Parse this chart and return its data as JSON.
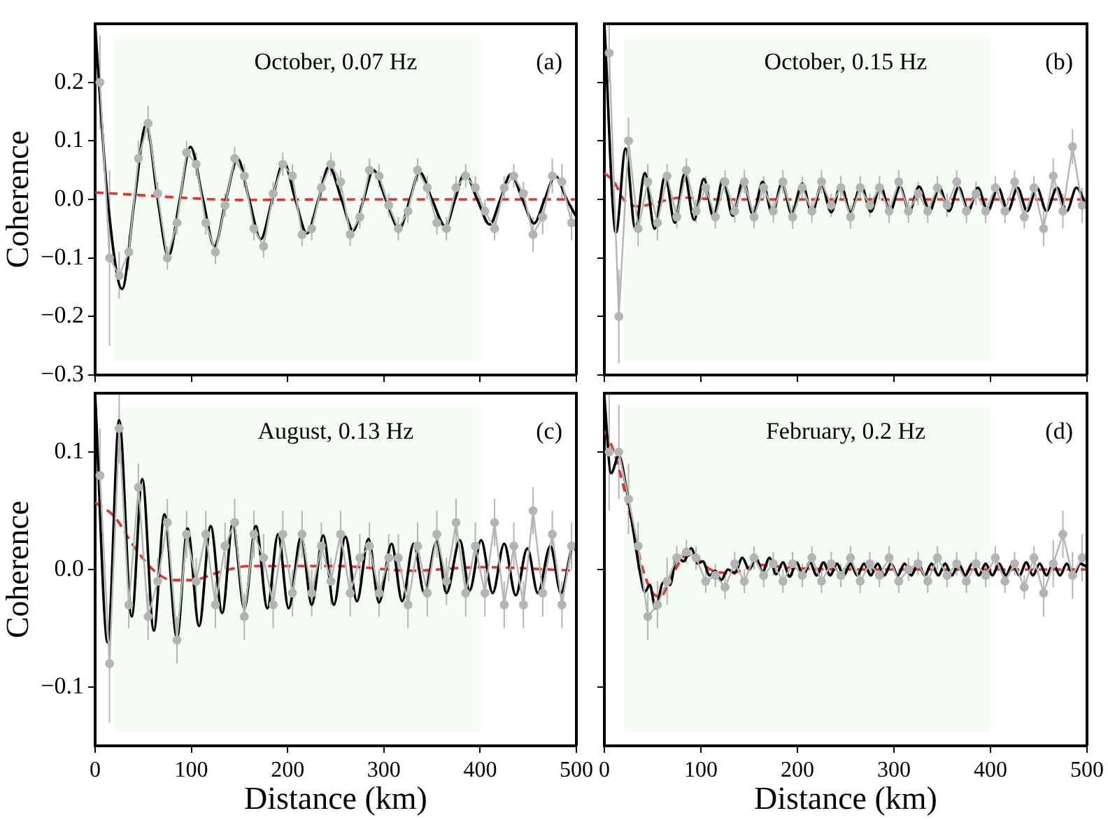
{
  "chart_data": [
    {
      "type": "line",
      "ylabel": "Coherence",
      "annotations": [
        "October, 0.07 Hz",
        "(a)"
      ],
      "xlim": [
        0,
        500
      ],
      "xticks": [
        {
          "value": 0,
          "label": null
        },
        {
          "value": 100,
          "label": null
        },
        {
          "value": 200,
          "label": null
        },
        {
          "value": 300,
          "label": null
        },
        {
          "value": 400,
          "label": null
        },
        {
          "value": 500,
          "label": null
        }
      ],
      "ylim": [
        -0.3,
        0.3
      ],
      "yticks": [
        {
          "value": -0.3,
          "label": "−0.3"
        },
        {
          "value": -0.2,
          "label": "−0.2"
        },
        {
          "value": -0.1,
          "label": "−0.1"
        },
        {
          "value": 0,
          "label": "0.0"
        },
        {
          "value": 0.1,
          "label": "0.1"
        },
        {
          "value": 0.2,
          "label": "0.2"
        }
      ],
      "tick_labels": "y",
      "legend": false,
      "grid": false,
      "bands": [
        {
          "axis": "x",
          "from": 20,
          "to": 400,
          "color": "#f4fcf4"
        }
      ],
      "series": [
        {
          "type": "line",
          "color": "#b4b4b4",
          "marker": "circle",
          "x": [
            5,
            15,
            25,
            35,
            45,
            55,
            65,
            75,
            85,
            95,
            105,
            115,
            125,
            135,
            145,
            155,
            165,
            175,
            185,
            195,
            205,
            215,
            225,
            235,
            245,
            255,
            265,
            275,
            285,
            295,
            305,
            315,
            325,
            335,
            345,
            355,
            365,
            375,
            385,
            395,
            405,
            415,
            425,
            435,
            445,
            455,
            465,
            475,
            485,
            495
          ],
          "values": [
            0.2,
            -0.1,
            -0.13,
            -0.09,
            0.07,
            0.13,
            0.01,
            -0.1,
            -0.04,
            0.08,
            0.06,
            -0.04,
            -0.09,
            -0.01,
            0.07,
            0.04,
            -0.05,
            -0.08,
            0.01,
            0.06,
            0.04,
            -0.06,
            -0.05,
            0.02,
            0.06,
            0.03,
            -0.06,
            -0.03,
            0.05,
            0.04,
            -0.01,
            -0.05,
            -0.02,
            0.05,
            0.02,
            -0.04,
            -0.05,
            0.02,
            0.04,
            0.02,
            -0.02,
            -0.05,
            0.02,
            0.04,
            0.01,
            -0.06,
            -0.03,
            0.04,
            0.03,
            -0.04
          ],
          "errors": [
            0.08,
            0.15,
            0.04,
            0.03,
            0.03,
            0.03,
            0.02,
            0.02,
            0.02,
            0.02,
            0.02,
            0.02,
            0.02,
            0.02,
            0.02,
            0.02,
            0.02,
            0.02,
            0.02,
            0.02,
            0.02,
            0.02,
            0.02,
            0.02,
            0.02,
            0.02,
            0.02,
            0.02,
            0.02,
            0.02,
            0.02,
            0.02,
            0.02,
            0.02,
            0.02,
            0.02,
            0.02,
            0.02,
            0.02,
            0.02,
            0.02,
            0.02,
            0.02,
            0.02,
            0.02,
            0.03,
            0.03,
            0.03,
            0.03,
            0.03
          ]
        },
        {
          "type": "line",
          "color": "#000000",
          "marker": "none",
          "x": [
            0,
            6,
            13,
            28,
            41,
            53,
            65,
            76,
            88,
            99,
            112,
            124,
            136,
            148,
            160,
            172,
            184,
            196,
            208,
            220,
            232,
            243,
            256,
            268,
            279,
            289,
            302,
            316,
            327,
            337,
            350,
            364,
            374,
            384,
            397,
            410,
            421,
            432,
            444,
            456,
            467,
            478,
            490,
            500
          ],
          "values": [
            0.3,
            0.15,
            0,
            -0.153,
            0,
            0.128,
            0,
            -0.097,
            0,
            0.09,
            0,
            -0.08,
            0,
            0.07,
            0,
            -0.068,
            0,
            0.063,
            0,
            -0.058,
            0,
            0.056,
            0,
            -0.053,
            0,
            0.05,
            0,
            -0.05,
            0,
            0.047,
            0,
            -0.046,
            0,
            0.045,
            0,
            -0.043,
            0,
            0.043,
            0,
            -0.041,
            0,
            0.04,
            0,
            -0.03
          ]
        },
        {
          "type": "line",
          "color": "#e8322a",
          "marker": "none",
          "line_style": "dashed",
          "x": [
            0,
            50,
            100,
            150,
            250,
            500
          ],
          "values": [
            0.012,
            0.007,
            0.002,
            -0.001,
            0,
            0
          ]
        }
      ]
    },
    {
      "type": "line",
      "annotations": [
        "October, 0.15 Hz",
        "(b)"
      ],
      "xlim": [
        0,
        500
      ],
      "xticks": [
        {
          "value": 0,
          "label": null
        },
        {
          "value": 100,
          "label": null
        },
        {
          "value": 200,
          "label": null
        },
        {
          "value": 300,
          "label": null
        },
        {
          "value": 400,
          "label": null
        },
        {
          "value": 500,
          "label": null
        }
      ],
      "ylim": [
        -0.3,
        0.3
      ],
      "yticks": [
        {
          "value": -0.3,
          "label": null
        },
        {
          "value": -0.2,
          "label": null
        },
        {
          "value": -0.1,
          "label": null
        },
        {
          "value": 0,
          "label": null
        },
        {
          "value": 0.1,
          "label": null
        },
        {
          "value": 0.2,
          "label": null
        }
      ],
      "tick_labels": false,
      "legend": false,
      "grid": false,
      "bands": [
        {
          "axis": "x",
          "from": 20,
          "to": 400,
          "color": "#f4fcf4"
        }
      ],
      "series": [
        {
          "type": "line",
          "color": "#b4b4b4",
          "marker": "circle",
          "x": [
            5,
            15,
            25,
            35,
            45,
            55,
            65,
            75,
            85,
            95,
            105,
            115,
            125,
            135,
            145,
            155,
            165,
            175,
            185,
            195,
            205,
            215,
            225,
            235,
            245,
            255,
            265,
            275,
            285,
            295,
            305,
            315,
            325,
            335,
            345,
            355,
            365,
            375,
            385,
            395,
            405,
            415,
            425,
            435,
            445,
            455,
            465,
            475,
            485,
            495
          ],
          "values": [
            0.25,
            -0.2,
            0.1,
            -0.05,
            0.03,
            -0.04,
            0.04,
            -0.03,
            0.05,
            -0.02,
            0.02,
            -0.03,
            0.03,
            -0.02,
            0.03,
            -0.03,
            0.02,
            -0.02,
            0.03,
            -0.03,
            0.02,
            -0.02,
            0.03,
            -0.01,
            0.02,
            -0.03,
            0.02,
            -0.01,
            0.02,
            -0.02,
            0.03,
            -0.02,
            0.01,
            -0.02,
            0.02,
            -0.01,
            0.03,
            -0.02,
            0.01,
            -0.02,
            0.02,
            -0.02,
            0.03,
            -0.03,
            0.02,
            -0.05,
            0.04,
            -0.02,
            0.09,
            -0.01
          ],
          "errors": [
            0.05,
            0.08,
            0.04,
            0.03,
            0.03,
            0.03,
            0.02,
            0.02,
            0.02,
            0.02,
            0.02,
            0.02,
            0.02,
            0.02,
            0.02,
            0.02,
            0.02,
            0.02,
            0.02,
            0.02,
            0.02,
            0.02,
            0.02,
            0.02,
            0.02,
            0.02,
            0.02,
            0.02,
            0.02,
            0.02,
            0.02,
            0.02,
            0.02,
            0.02,
            0.02,
            0.02,
            0.02,
            0.02,
            0.02,
            0.02,
            0.02,
            0.02,
            0.02,
            0.02,
            0.02,
            0.03,
            0.03,
            0.03,
            0.03,
            0.03
          ]
        },
        {
          "type": "line",
          "color": "#000000",
          "marker": "none",
          "x": [
            0,
            12,
            22,
            32,
            42,
            52,
            63,
            73,
            83,
            93,
            103,
            113,
            123,
            133,
            144,
            154,
            164,
            174,
            184,
            194,
            205,
            215,
            225,
            235,
            245,
            255,
            266,
            276,
            286,
            296,
            306,
            316,
            326,
            337,
            347,
            357,
            367,
            377,
            387,
            397,
            408,
            418,
            428,
            438,
            448,
            458,
            469,
            479,
            489,
            500
          ],
          "values": [
            0.3,
            -0.057,
            0.087,
            -0.05,
            0.045,
            -0.05,
            0.04,
            -0.04,
            0.043,
            -0.035,
            0.035,
            -0.03,
            0.035,
            -0.028,
            0.033,
            -0.027,
            0.03,
            -0.025,
            0.028,
            -0.024,
            0.027,
            -0.023,
            0.025,
            -0.022,
            0.025,
            -0.022,
            0.024,
            -0.021,
            0.023,
            -0.021,
            0.022,
            -0.02,
            0.022,
            -0.02,
            0.021,
            -0.02,
            0.021,
            -0.02,
            0.02,
            -0.02,
            0.02,
            -0.02,
            0.02,
            -0.02,
            0.02,
            -0.02,
            0.02,
            -0.02,
            0.02,
            -0.015
          ]
        },
        {
          "type": "line",
          "color": "#e8322a",
          "marker": "none",
          "line_style": "dashed",
          "x": [
            0,
            10,
            20,
            35,
            55,
            80,
            120,
            500
          ],
          "values": [
            0.045,
            0.03,
            0,
            -0.012,
            -0.005,
            0.003,
            0,
            0
          ]
        }
      ]
    },
    {
      "type": "line",
      "xlabel": "Distance (km)",
      "ylabel": "Coherence",
      "annotations": [
        "August, 0.13 Hz",
        "(c)"
      ],
      "xlim": [
        0,
        500
      ],
      "xticks": [
        0,
        100,
        200,
        300,
        400,
        500
      ],
      "ylim": [
        -0.15,
        0.15
      ],
      "yticks": [
        {
          "value": -0.1,
          "label": "−0.1"
        },
        {
          "value": 0,
          "label": "0.0"
        },
        {
          "value": 0.1,
          "label": "0.1"
        }
      ],
      "legend": false,
      "grid": false,
      "bands": [
        {
          "axis": "x",
          "from": 20,
          "to": 400,
          "color": "#f4fcf4"
        }
      ],
      "series": [
        {
          "type": "line",
          "color": "#b4b4b4",
          "marker": "circle",
          "x": [
            5,
            15,
            25,
            35,
            45,
            55,
            65,
            75,
            85,
            95,
            105,
            115,
            125,
            135,
            145,
            155,
            165,
            175,
            185,
            195,
            205,
            215,
            225,
            235,
            245,
            255,
            265,
            275,
            285,
            295,
            305,
            315,
            325,
            335,
            345,
            355,
            365,
            375,
            385,
            395,
            405,
            415,
            425,
            435,
            445,
            455,
            465,
            475,
            485,
            495
          ],
          "values": [
            0.08,
            -0.08,
            0.12,
            -0.03,
            0.07,
            -0.04,
            -0.01,
            0.04,
            -0.06,
            0.03,
            -0.01,
            0.03,
            -0.03,
            0.02,
            0.04,
            -0.04,
            0.03,
            0.01,
            -0.03,
            0.03,
            -0.02,
            0.03,
            -0.02,
            0.02,
            -0.01,
            0.03,
            -0.02,
            0.01,
            0.02,
            -0.02,
            0.01,
            0.01,
            -0.03,
            0.02,
            -0.02,
            0.03,
            -0.01,
            0.04,
            -0.02,
            0.02,
            -0.02,
            0.04,
            -0.03,
            0.02,
            -0.03,
            0.05,
            -0.02,
            0.03,
            -0.03,
            0.02
          ],
          "errors": [
            0.04,
            0.05,
            0.03,
            0.02,
            0.02,
            0.02,
            0.02,
            0.02,
            0.02,
            0.02,
            0.02,
            0.02,
            0.02,
            0.02,
            0.02,
            0.02,
            0.02,
            0.02,
            0.02,
            0.02,
            0.02,
            0.02,
            0.02,
            0.02,
            0.02,
            0.02,
            0.02,
            0.02,
            0.02,
            0.02,
            0.02,
            0.02,
            0.02,
            0.02,
            0.02,
            0.02,
            0.02,
            0.02,
            0.02,
            0.02,
            0.02,
            0.02,
            0.02,
            0.02,
            0.02,
            0.02,
            0.02,
            0.02,
            0.02,
            0.02
          ]
        },
        {
          "type": "line",
          "color": "#000000",
          "marker": "none",
          "x": [
            0,
            13,
            25,
            38,
            49,
            61,
            72,
            85,
            96,
            108,
            120,
            132,
            143,
            155,
            167,
            179,
            190,
            201,
            214,
            225,
            237,
            248,
            260,
            272,
            284,
            295,
            308,
            319,
            331,
            342,
            355,
            365,
            379,
            389,
            401,
            413,
            425,
            437,
            449,
            460,
            473,
            484,
            497,
            500
          ],
          "values": [
            0.15,
            -0.062,
            0.127,
            -0.04,
            0.077,
            -0.052,
            0.047,
            -0.058,
            0.035,
            -0.048,
            0.037,
            -0.037,
            0.039,
            -0.033,
            0.037,
            -0.033,
            0.03,
            -0.033,
            0.028,
            -0.03,
            0.029,
            -0.03,
            0.028,
            -0.027,
            0.026,
            -0.028,
            0.022,
            -0.027,
            0.022,
            -0.02,
            0.024,
            -0.02,
            0.025,
            -0.018,
            0.025,
            -0.02,
            0.022,
            -0.022,
            0.018,
            -0.02,
            0.02,
            -0.02,
            0.02,
            0.015
          ]
        },
        {
          "type": "line",
          "color": "#e8322a",
          "marker": "none",
          "line_style": "dashed",
          "x": [
            0,
            20,
            40,
            60,
            80,
            100,
            130,
            160,
            250,
            330,
            400,
            500
          ],
          "values": [
            0.057,
            0.045,
            0.02,
            0,
            -0.009,
            -0.009,
            -0.002,
            0.003,
            0.003,
            -0.001,
            0.002,
            -0.001
          ]
        }
      ]
    },
    {
      "type": "line",
      "xlabel": "Distance (km)",
      "annotations": [
        "February, 0.2 Hz",
        "(d)"
      ],
      "xlim": [
        0,
        500
      ],
      "xticks": [
        0,
        100,
        200,
        300,
        400,
        500
      ],
      "ylim": [
        -0.15,
        0.15
      ],
      "yticks": [
        {
          "value": -0.1,
          "label": null
        },
        {
          "value": 0,
          "label": null
        },
        {
          "value": 0.1,
          "label": null
        }
      ],
      "tick_labels": "x",
      "legend": false,
      "grid": false,
      "bands": [
        {
          "axis": "x",
          "from": 20,
          "to": 400,
          "color": "#f4fcf4"
        }
      ],
      "series": [
        {
          "type": "line",
          "color": "#b4b4b4",
          "marker": "circle",
          "x": [
            5,
            15,
            25,
            35,
            45,
            55,
            65,
            75,
            85,
            95,
            105,
            115,
            125,
            135,
            145,
            155,
            165,
            175,
            185,
            195,
            205,
            215,
            225,
            235,
            245,
            255,
            265,
            275,
            285,
            295,
            305,
            315,
            325,
            335,
            345,
            355,
            365,
            375,
            385,
            395,
            405,
            415,
            425,
            435,
            445,
            455,
            465,
            475,
            485,
            495
          ],
          "values": [
            0.1,
            0.1,
            0.06,
            0.02,
            -0.04,
            -0.03,
            -0.01,
            0.01,
            0.015,
            0.01,
            -0.01,
            -0.005,
            -0.015,
            0.005,
            -0.01,
            0.01,
            -0.005,
            0.005,
            -0.01,
            0.005,
            -0.005,
            0.01,
            -0.01,
            0.005,
            -0.005,
            0.01,
            -0.01,
            0.005,
            -0.005,
            0.01,
            -0.01,
            0,
            0.005,
            -0.01,
            0.01,
            -0.005,
            0.005,
            -0.01,
            0.005,
            -0.005,
            0.01,
            -0.01,
            0.005,
            -0.015,
            0.01,
            -0.02,
            0.005,
            0.03,
            -0.005,
            0.01
          ],
          "errors": [
            0.05,
            0.04,
            0.03,
            0.02,
            0.02,
            0.02,
            0.02,
            0.01,
            0.01,
            0.01,
            0.01,
            0.01,
            0.01,
            0.01,
            0.01,
            0.01,
            0.01,
            0.01,
            0.01,
            0.01,
            0.01,
            0.01,
            0.01,
            0.01,
            0.01,
            0.01,
            0.01,
            0.01,
            0.01,
            0.01,
            0.01,
            0.01,
            0.01,
            0.01,
            0.01,
            0.01,
            0.01,
            0.01,
            0.01,
            0.01,
            0.01,
            0.01,
            0.01,
            0.01,
            0.01,
            0.02,
            0.02,
            0.02,
            0.02,
            0.02
          ]
        },
        {
          "type": "line",
          "color": "#000000",
          "marker": "none",
          "x": [
            0,
            7,
            15,
            23,
            30,
            37,
            42,
            47,
            53,
            61,
            68,
            75,
            82,
            90,
            97,
            102,
            109,
            115,
            121,
            128,
            135,
            143,
            150,
            157,
            164,
            171,
            178,
            185,
            192,
            199,
            206,
            213,
            220,
            227,
            234,
            241,
            248,
            255,
            262,
            269,
            276,
            283,
            290,
            297,
            304,
            311,
            318,
            325,
            332,
            339,
            346,
            353,
            360,
            367,
            374,
            381,
            388,
            395,
            402,
            409,
            416,
            423,
            430,
            437,
            444,
            451,
            458,
            465,
            472,
            479,
            486,
            493,
            500
          ],
          "values": [
            0.147,
            0.082,
            0.097,
            0.068,
            0.033,
            -0.003,
            -0.019,
            -0.013,
            -0.033,
            -0.011,
            -0.013,
            0.011,
            0.007,
            0.018,
            0.005,
            0.007,
            -0.005,
            -0.001,
            -0.009,
            0,
            -0.003,
            0.01,
            0,
            0.01,
            -0.002,
            0.01,
            -0.004,
            0.006,
            -0.006,
            0.006,
            -0.005,
            0.006,
            -0.005,
            0.006,
            -0.005,
            0.005,
            -0.005,
            0.005,
            -0.005,
            0.005,
            -0.005,
            0.005,
            -0.005,
            0.005,
            -0.005,
            0.005,
            -0.005,
            0.005,
            -0.005,
            0.005,
            -0.005,
            0.005,
            -0.005,
            0.005,
            -0.005,
            0.005,
            -0.005,
            0.005,
            -0.005,
            0.005,
            -0.005,
            0.005,
            -0.005,
            0.006,
            -0.005,
            0.005,
            -0.005,
            0.005,
            -0.005,
            0.005,
            -0.005,
            0.005,
            0.002
          ]
        },
        {
          "type": "line",
          "color": "#e8322a",
          "marker": "none",
          "line_style": "dashed",
          "x": [
            0,
            10,
            20,
            30,
            40,
            50,
            58,
            70,
            85,
            95,
            110,
            130,
            160,
            200,
            300,
            500
          ],
          "values": [
            0.118,
            0.1,
            0.07,
            0.035,
            0,
            -0.02,
            -0.023,
            -0.005,
            0.012,
            0.01,
            0,
            -0.003,
            0.004,
            0.001,
            0,
            0
          ]
        }
      ]
    }
  ]
}
